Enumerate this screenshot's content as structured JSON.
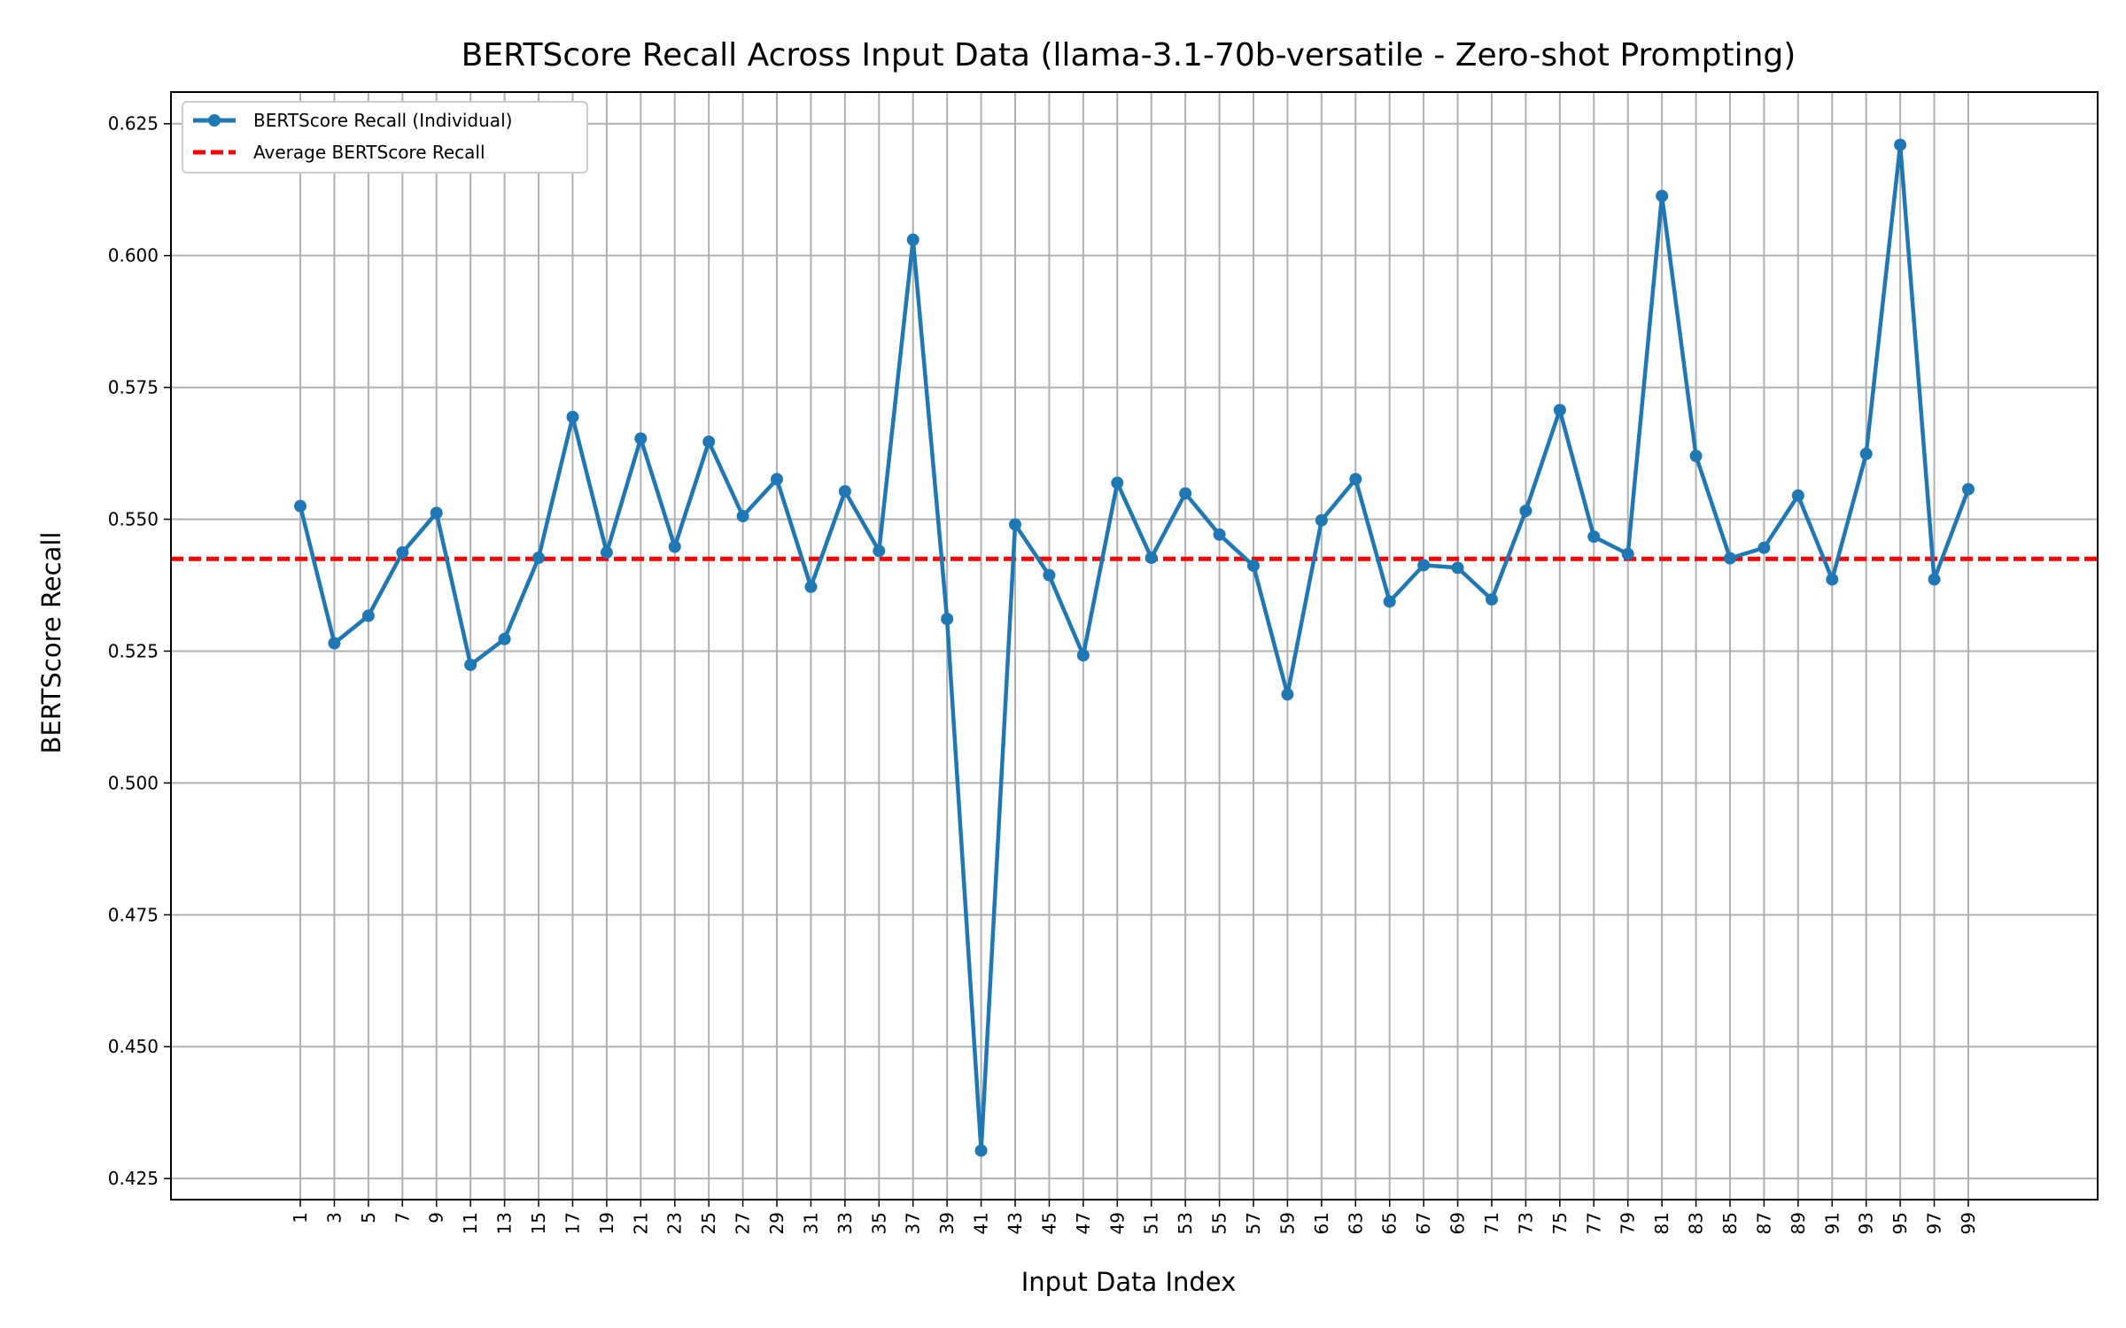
{
  "chart_data": {
    "type": "line",
    "title": "BERTScore Recall Across Input Data (llama-3.1-70b-versatile - Zero-shot Prompting)",
    "xlabel": "Input Data Index",
    "ylabel": "BERTScore Recall",
    "xlim": [
      -6.6,
      106.6
    ],
    "ylim": [
      0.421,
      0.631
    ],
    "x_ticks": [
      1,
      3,
      5,
      7,
      9,
      11,
      13,
      15,
      17,
      19,
      21,
      23,
      25,
      27,
      29,
      31,
      33,
      35,
      37,
      39,
      41,
      43,
      45,
      47,
      49,
      51,
      53,
      55,
      57,
      59,
      61,
      63,
      65,
      67,
      69,
      71,
      73,
      75,
      77,
      79,
      81,
      83,
      85,
      87,
      89,
      91,
      93,
      95,
      97,
      99
    ],
    "y_ticks": [
      0.425,
      0.45,
      0.475,
      0.5,
      0.525,
      0.55,
      0.575,
      0.6,
      0.625
    ],
    "y_tick_labels": [
      "0.425",
      "0.450",
      "0.475",
      "0.500",
      "0.525",
      "0.550",
      "0.575",
      "0.600",
      "0.625"
    ],
    "grid": true,
    "legend_position": "top-left",
    "series": [
      {
        "name": "BERTScore Recall (Individual)",
        "color": "#1f77b4",
        "style": "line-with-dot-markers",
        "x": [
          1,
          3,
          5,
          7,
          9,
          11,
          13,
          15,
          17,
          19,
          21,
          23,
          25,
          27,
          29,
          31,
          33,
          35,
          37,
          39,
          41,
          43,
          45,
          47,
          49,
          51,
          53,
          55,
          57,
          59,
          61,
          63,
          65,
          67,
          69,
          71,
          73,
          75,
          77,
          79,
          81,
          83,
          85,
          87,
          89,
          91,
          93,
          95,
          97,
          99
        ],
        "y": [
          0.5525,
          0.5265,
          0.5317,
          0.5437,
          0.5512,
          0.5224,
          0.5273,
          0.5427,
          0.5694,
          0.5437,
          0.5653,
          0.5448,
          0.5647,
          0.5506,
          0.5576,
          0.5372,
          0.5553,
          0.544,
          0.603,
          0.5311,
          0.4303,
          0.549,
          0.5394,
          0.5242,
          0.5569,
          0.5427,
          0.5549,
          0.5471,
          0.5412,
          0.5168,
          0.5498,
          0.5576,
          0.5344,
          0.5413,
          0.5408,
          0.5348,
          0.5516,
          0.5707,
          0.5467,
          0.5434,
          0.6113,
          0.562,
          0.5426,
          0.5446,
          0.5545,
          0.5386,
          0.5624,
          0.621,
          0.5386,
          0.5557
        ]
      },
      {
        "name": "Average BERTScore Recall",
        "color": "#ff0000",
        "style": "dashed",
        "y_constant": 0.5425
      }
    ]
  }
}
